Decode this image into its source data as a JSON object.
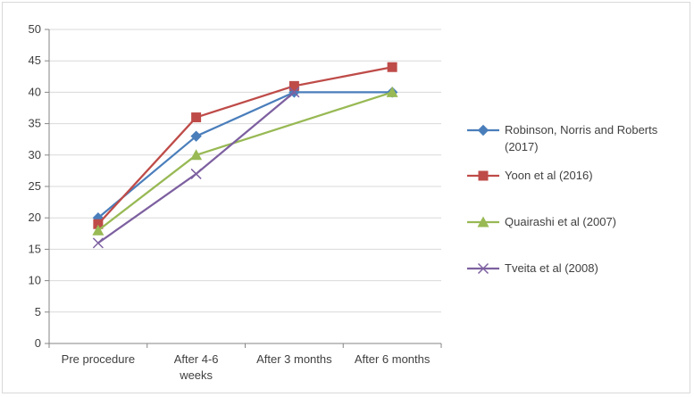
{
  "chart_data": {
    "type": "line",
    "title": "",
    "xlabel": "",
    "ylabel": "",
    "ylim": [
      0,
      50
    ],
    "yticks": [
      0,
      5,
      10,
      15,
      20,
      25,
      30,
      35,
      40,
      45,
      50
    ],
    "categories": [
      [
        "Pre procedure"
      ],
      [
        "After 4-6",
        "weeks"
      ],
      [
        "After 3 months"
      ],
      [
        "After 6 months"
      ]
    ],
    "grid": true,
    "legend_position": "right",
    "series": [
      {
        "name_lines": [
          "Robinson, Norris and Roberts",
          "(2017)"
        ],
        "color": "#4a7ebb",
        "marker": "diamond",
        "values": [
          20,
          33,
          40,
          40
        ]
      },
      {
        "name_lines": [
          "Yoon et al (2016)"
        ],
        "color": "#be4b48",
        "marker": "square",
        "values": [
          19,
          36,
          41,
          44
        ]
      },
      {
        "name_lines": [
          "Quairashi et al (2007)"
        ],
        "color": "#98b954",
        "marker": "triangle",
        "values": [
          18,
          30,
          null,
          40
        ]
      },
      {
        "name_lines": [
          "Tveita et al (2008)"
        ],
        "color": "#7d60a0",
        "marker": "x",
        "values": [
          16,
          27,
          40,
          null
        ]
      }
    ]
  }
}
